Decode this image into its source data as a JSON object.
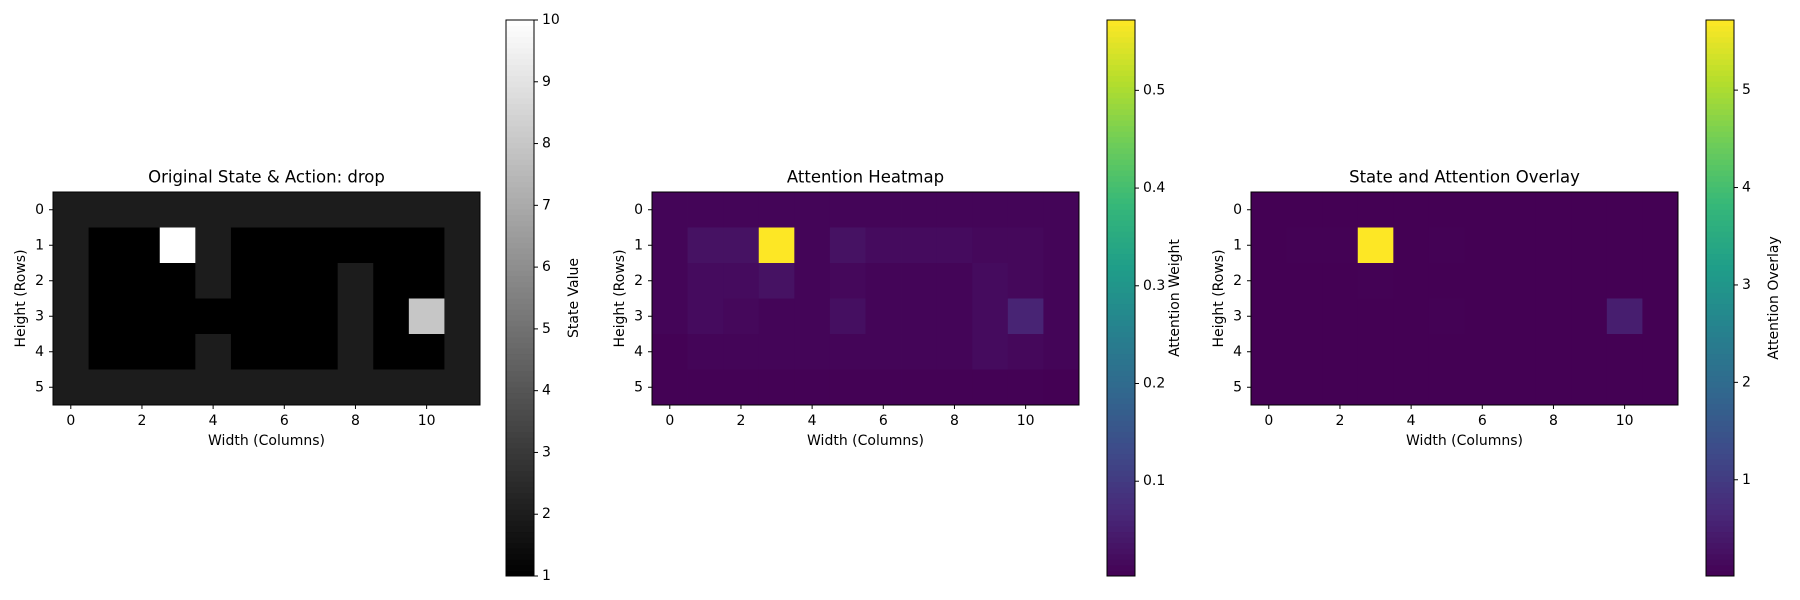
{
  "chart_data": [
    {
      "type": "heatmap",
      "title": "Original State & Action: drop",
      "xlabel": "Width (Columns)",
      "ylabel": "Height (Rows)",
      "colorbar_label": "State Value",
      "colormap": "gray",
      "xlim": [
        -0.5,
        11.5
      ],
      "ylim": [
        5.5,
        -0.5
      ],
      "xticks": [
        0,
        2,
        4,
        6,
        8,
        10
      ],
      "yticks": [
        0,
        1,
        2,
        3,
        4,
        5
      ],
      "clim": [
        1,
        10
      ],
      "cticks": [
        1,
        2,
        3,
        4,
        5,
        6,
        7,
        8,
        9,
        10
      ],
      "z": [
        [
          2,
          2,
          2,
          2,
          2,
          2,
          2,
          2,
          2,
          2,
          2,
          2
        ],
        [
          2,
          1,
          1,
          10,
          2,
          1,
          1,
          1,
          1,
          1,
          1,
          2
        ],
        [
          2,
          1,
          1,
          1,
          2,
          1,
          1,
          1,
          2,
          1,
          1,
          2
        ],
        [
          2,
          1,
          1,
          1,
          1,
          1,
          1,
          1,
          2,
          1,
          8,
          2
        ],
        [
          2,
          1,
          1,
          1,
          2,
          1,
          1,
          1,
          2,
          1,
          1,
          2
        ],
        [
          2,
          2,
          2,
          2,
          2,
          2,
          2,
          2,
          2,
          2,
          2,
          2
        ]
      ]
    },
    {
      "type": "heatmap",
      "title": "Attention Heatmap",
      "xlabel": "Width (Columns)",
      "ylabel": "Height (Rows)",
      "colorbar_label": "Attention Weight",
      "colormap": "viridis",
      "xlim": [
        -0.5,
        11.5
      ],
      "ylim": [
        5.5,
        -0.5
      ],
      "xticks": [
        0,
        2,
        4,
        6,
        8,
        10
      ],
      "yticks": [
        0,
        1,
        2,
        3,
        4,
        5
      ],
      "clim": [
        0.003,
        0.572
      ],
      "cticks": [
        0.1,
        0.2,
        0.3,
        0.4,
        0.5
      ],
      "z": [
        [
          0.01,
          0.01,
          0.01,
          0.01,
          0.01,
          0.01,
          0.01,
          0.01,
          0.01,
          0.01,
          0.01,
          0.01
        ],
        [
          0.01,
          0.03,
          0.03,
          0.572,
          0.01,
          0.03,
          0.02,
          0.02,
          0.02,
          0.015,
          0.015,
          0.01
        ],
        [
          0.01,
          0.02,
          0.02,
          0.03,
          0.01,
          0.015,
          0.01,
          0.01,
          0.01,
          0.02,
          0.015,
          0.01
        ],
        [
          0.01,
          0.02,
          0.015,
          0.01,
          0.01,
          0.025,
          0.01,
          0.01,
          0.01,
          0.02,
          0.06,
          0.01
        ],
        [
          0.005,
          0.01,
          0.01,
          0.01,
          0.01,
          0.01,
          0.01,
          0.01,
          0.01,
          0.02,
          0.015,
          0.01
        ],
        [
          0.005,
          0.005,
          0.005,
          0.005,
          0.005,
          0.005,
          0.005,
          0.005,
          0.005,
          0.005,
          0.005,
          0.003
        ]
      ]
    },
    {
      "type": "heatmap",
      "title": "State and Attention Overlay",
      "xlabel": "Width (Columns)",
      "ylabel": "Height (Rows)",
      "colorbar_label": "Attention Overlay",
      "colormap": "viridis",
      "xlim": [
        -0.5,
        11.5
      ],
      "ylim": [
        5.5,
        -0.5
      ],
      "xticks": [
        0,
        2,
        4,
        6,
        8,
        10
      ],
      "yticks": [
        0,
        1,
        2,
        3,
        4,
        5
      ],
      "clim": [
        0.012,
        5.72
      ],
      "cticks": [
        1,
        2,
        3,
        4,
        5
      ],
      "z": [
        [
          0.02,
          0.02,
          0.02,
          0.02,
          0.02,
          0.02,
          0.02,
          0.02,
          0.02,
          0.02,
          0.02,
          0.02
        ],
        [
          0.02,
          0.03,
          0.03,
          5.72,
          0.02,
          0.03,
          0.02,
          0.02,
          0.02,
          0.015,
          0.015,
          0.02
        ],
        [
          0.02,
          0.02,
          0.02,
          0.03,
          0.02,
          0.015,
          0.01,
          0.01,
          0.02,
          0.02,
          0.015,
          0.02
        ],
        [
          0.02,
          0.02,
          0.015,
          0.01,
          0.01,
          0.025,
          0.01,
          0.01,
          0.02,
          0.02,
          0.48,
          0.02
        ],
        [
          0.01,
          0.01,
          0.01,
          0.01,
          0.02,
          0.01,
          0.01,
          0.01,
          0.02,
          0.02,
          0.015,
          0.02
        ],
        [
          0.01,
          0.01,
          0.01,
          0.01,
          0.01,
          0.01,
          0.01,
          0.01,
          0.01,
          0.01,
          0.01,
          0.012
        ]
      ]
    }
  ]
}
